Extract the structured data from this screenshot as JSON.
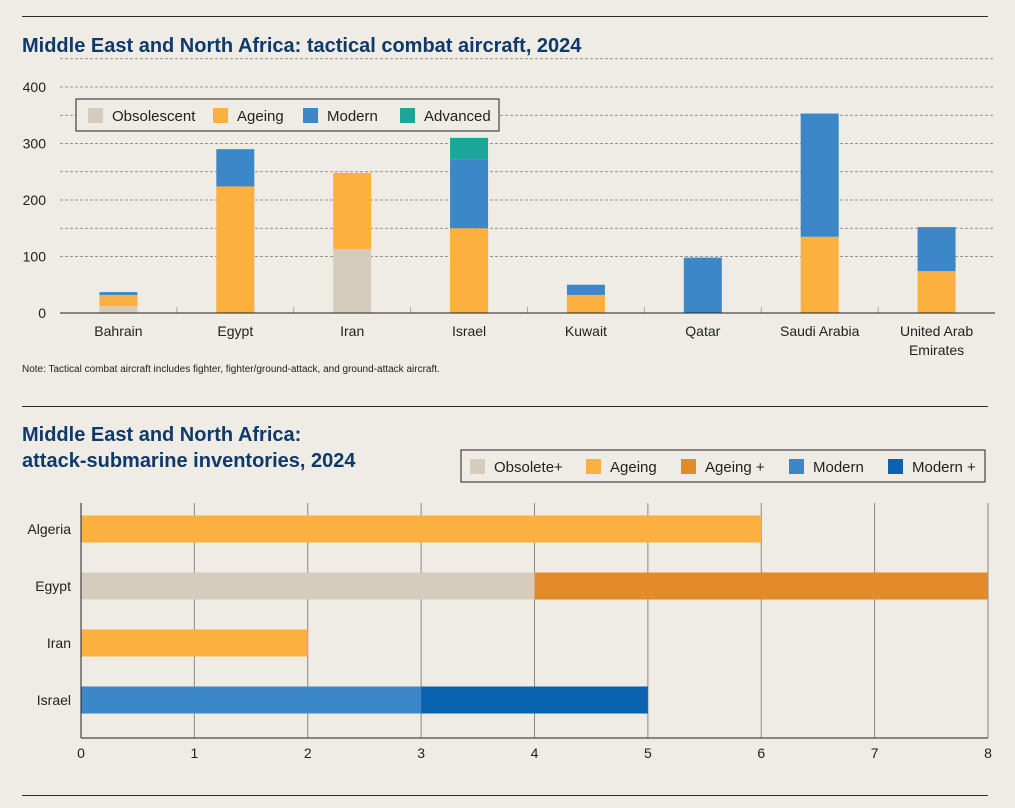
{
  "colors": {
    "obsolescent": "#d6ccbd",
    "ageing": "#fbb040",
    "ageing_plus": "#e38a2a",
    "modern": "#3b87c8",
    "modern_plus": "#0a63b0",
    "advanced": "#1aa79a",
    "title": "#0e3a6b"
  },
  "top": {
    "title": "Middle East and North Africa: tactical combat aircraft, 2024",
    "note": "Note: Tactical combat aircraft includes fighter, fighter/ground-attack, and ground-attack aircraft."
  },
  "bottom": {
    "title_line1": "Middle East and North Africa:",
    "title_line2": "attack-submarine inventories, 2024"
  },
  "chart_data": [
    {
      "type": "bar",
      "stacked": true,
      "orientation": "vertical",
      "title": "Middle East and North Africa: tactical combat aircraft, 2024",
      "categories": [
        "Bahrain",
        "Egypt",
        "Iran",
        "Israel",
        "Kuwait",
        "Qatar",
        "Saudi Arabia",
        "United Arab Emirates"
      ],
      "category_lines": [
        [
          "Bahrain"
        ],
        [
          "Egypt"
        ],
        [
          "Iran"
        ],
        [
          "Israel"
        ],
        [
          "Kuwait"
        ],
        [
          "Qatar"
        ],
        [
          "Saudi Arabia"
        ],
        [
          "United Arab",
          "Emirates"
        ]
      ],
      "series": [
        {
          "name": "Obsolescent",
          "color_key": "obsolescent",
          "values": [
            12,
            0,
            113,
            0,
            0,
            0,
            0,
            0
          ]
        },
        {
          "name": "Ageing",
          "color_key": "ageing",
          "values": [
            20,
            224,
            135,
            150,
            32,
            0,
            135,
            74
          ]
        },
        {
          "name": "Modern",
          "color_key": "modern",
          "values": [
            5,
            66,
            0,
            122,
            18,
            98,
            218,
            78
          ]
        },
        {
          "name": "Advanced",
          "color_key": "advanced",
          "values": [
            0,
            0,
            0,
            38,
            0,
            0,
            0,
            0
          ]
        }
      ],
      "yticks": [
        0,
        100,
        200,
        300,
        400
      ],
      "ylim": [
        0,
        400
      ],
      "grid": true,
      "legend_position": "top-left"
    },
    {
      "type": "bar",
      "stacked": true,
      "orientation": "horizontal",
      "title": "Middle East and North Africa: attack-submarine inventories, 2024",
      "categories": [
        "Algeria",
        "Egypt",
        "Iran",
        "Israel"
      ],
      "series": [
        {
          "name": "Obsolete+",
          "color_key": "obsolescent",
          "values": [
            0,
            4,
            0,
            0
          ]
        },
        {
          "name": "Ageing",
          "color_key": "ageing",
          "values": [
            6,
            0,
            2,
            0
          ]
        },
        {
          "name": "Ageing +",
          "color_key": "ageing_plus",
          "values": [
            0,
            4,
            0,
            0
          ]
        },
        {
          "name": "Modern",
          "color_key": "modern",
          "values": [
            0,
            0,
            0,
            3
          ]
        },
        {
          "name": "Modern +",
          "color_key": "modern_plus",
          "values": [
            0,
            0,
            0,
            2
          ]
        }
      ],
      "xticks": [
        0,
        1,
        2,
        3,
        4,
        5,
        6,
        7,
        8
      ],
      "xlim": [
        0,
        8
      ],
      "grid": true,
      "legend_position": "top-right"
    }
  ]
}
